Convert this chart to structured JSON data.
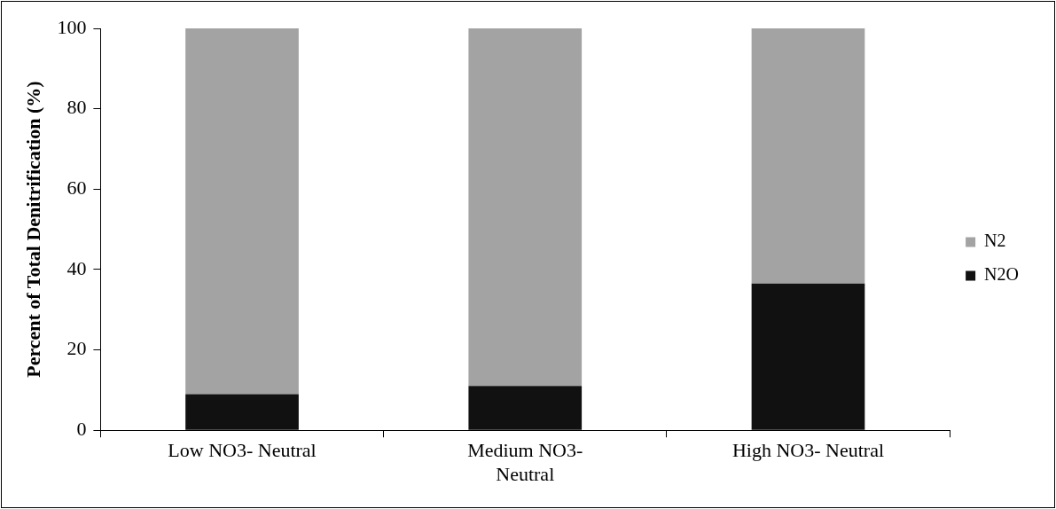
{
  "chart_data": {
    "type": "bar",
    "stacked": true,
    "ylabel": "Percent of Total Denitrification (%)",
    "categories": [
      "Low NO3- Neutral",
      "Medium NO3- Neutral",
      "High NO3- Neutral"
    ],
    "series": [
      {
        "name": "N2O",
        "color": "#111111",
        "values": [
          9,
          11,
          36.5
        ]
      },
      {
        "name": "N2",
        "color": "#a3a3a3",
        "values": [
          91,
          89,
          63.5
        ]
      }
    ],
    "ylim": [
      0,
      100
    ],
    "yticks": [
      0,
      20,
      40,
      60,
      80,
      100
    ],
    "grid": false,
    "legend": "right"
  }
}
